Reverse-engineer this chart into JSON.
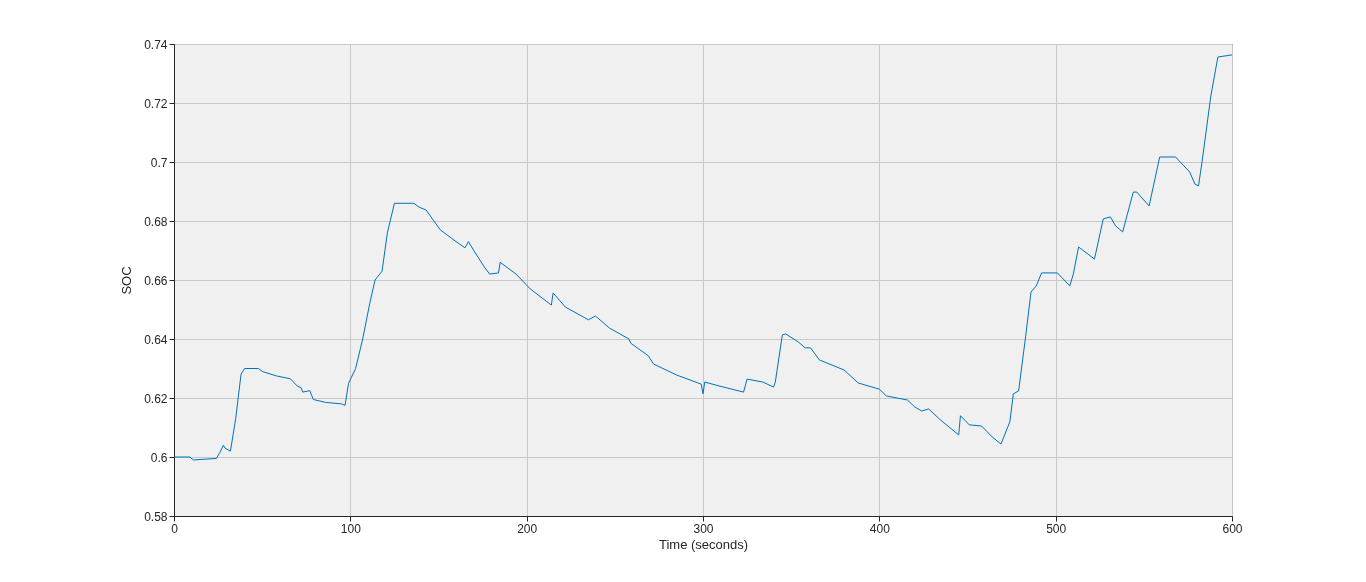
{
  "chart_data": {
    "type": "line",
    "xlabel": "Time (seconds)",
    "ylabel": "SOC",
    "xlim": [
      0,
      600
    ],
    "ylim": [
      0.58,
      0.74
    ],
    "xticks": [
      0,
      100,
      200,
      300,
      400,
      500,
      600
    ],
    "yticks": [
      0.58,
      0.6,
      0.62,
      0.64,
      0.66,
      0.68,
      0.7,
      0.72,
      0.74
    ],
    "grid": true,
    "marker": "none",
    "line_style": "solid",
    "series": [
      {
        "color": "#0072bd",
        "x": [
          0,
          9,
          11,
          24,
          26,
          28,
          29,
          32,
          35,
          38,
          40,
          48,
          50,
          58,
          66,
          70,
          72,
          73,
          77,
          79,
          86,
          95,
          97,
          99,
          103,
          107,
          111,
          114,
          118,
          121,
          125,
          136,
          139,
          143,
          151,
          160,
          165,
          167,
          170,
          176,
          179,
          184,
          185,
          194,
          202,
          214,
          215,
          222,
          235,
          239,
          247,
          258,
          259,
          269,
          272,
          285,
          299,
          300,
          301,
          309,
          323,
          325,
          334,
          340,
          341,
          345,
          347,
          354,
          358,
          361,
          366,
          380,
          388,
          400,
          404,
          416,
          420,
          424,
          428,
          434,
          445,
          446,
          451,
          458,
          464,
          469,
          474,
          476,
          479,
          483,
          486,
          489,
          492,
          501,
          508,
          510,
          513,
          522,
          527,
          531,
          534,
          538,
          544,
          546,
          553,
          559,
          568,
          576,
          579,
          581,
          583,
          588,
          592,
          600
        ],
        "values": [
          0.6,
          0.6,
          0.599,
          0.5995,
          0.6015,
          0.604,
          0.603,
          0.602,
          0.613,
          0.628,
          0.63,
          0.63,
          0.629,
          0.6275,
          0.6265,
          0.624,
          0.6235,
          0.622,
          0.6225,
          0.6195,
          0.6185,
          0.618,
          0.6175,
          0.625,
          0.63,
          0.64,
          0.652,
          0.66,
          0.663,
          0.676,
          0.686,
          0.686,
          0.6847,
          0.6837,
          0.677,
          0.673,
          0.6709,
          0.673,
          0.67,
          0.6644,
          0.662,
          0.6624,
          0.666,
          0.662,
          0.657,
          0.6515,
          0.6556,
          0.6508,
          0.6465,
          0.6478,
          0.6437,
          0.64,
          0.6386,
          0.6343,
          0.6315,
          0.6278,
          0.6247,
          0.6214,
          0.6254,
          0.6241,
          0.622,
          0.6264,
          0.6254,
          0.6237,
          0.6254,
          0.6414,
          0.6417,
          0.639,
          0.637,
          0.637,
          0.6329,
          0.6295,
          0.6251,
          0.623,
          0.6207,
          0.6193,
          0.617,
          0.6156,
          0.6163,
          0.6129,
          0.6075,
          0.614,
          0.6109,
          0.6105,
          0.6068,
          0.6044,
          0.6119,
          0.6214,
          0.6224,
          0.641,
          0.6559,
          0.658,
          0.6624,
          0.6624,
          0.658,
          0.662,
          0.6712,
          0.6671,
          0.6807,
          0.6814,
          0.6783,
          0.6763,
          0.6898,
          0.6898,
          0.6851,
          0.7017,
          0.7017,
          0.6966,
          0.6925,
          0.6919,
          0.7,
          0.7224,
          0.7356,
          0.7363
        ]
      }
    ]
  }
}
